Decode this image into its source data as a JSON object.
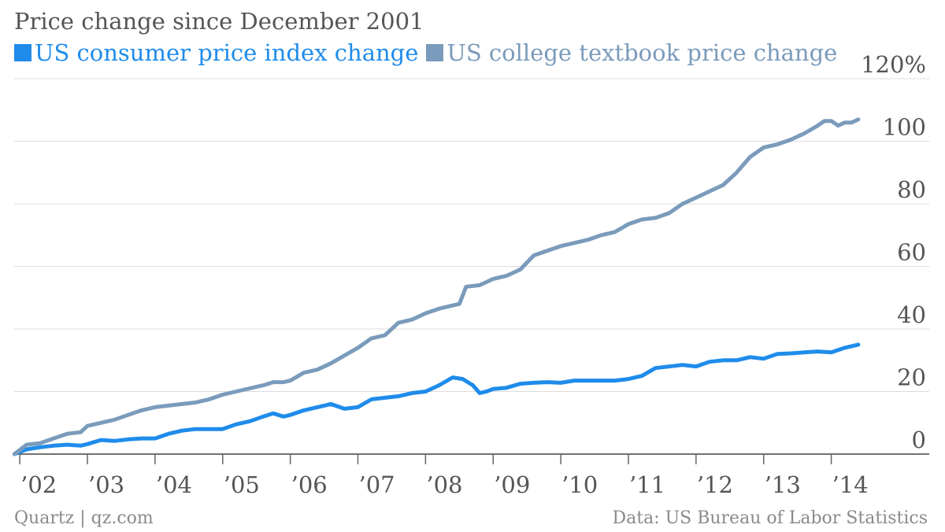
{
  "title": "Price change since December 2001",
  "legend": [
    {
      "label": "US consumer price index change",
      "color": "#1f8ceb"
    },
    {
      "label": "US college textbook price change",
      "color": "#7a9bbb"
    }
  ],
  "footer": {
    "source_left": "Quartz | qz.com",
    "source_right": "Data: US Bureau of Labor Statistics"
  },
  "chart_data": {
    "type": "line",
    "title": "Price change since December 2001",
    "xlabel": "",
    "ylabel": "",
    "xlim": [
      2001.917,
      2014.75
    ],
    "ylim": [
      0,
      120
    ],
    "grid": true,
    "legend_position": "top-left",
    "y_ticks": [
      "0",
      "20",
      "40",
      "60",
      "80",
      "100",
      "120%"
    ],
    "x_ticks": [
      "’02",
      "’03",
      "’04",
      "’05",
      "’06",
      "’07",
      "’08",
      "’09",
      "’10",
      "’11",
      "’12",
      "’13",
      "’14"
    ],
    "series": [
      {
        "name": "US consumer price index change",
        "color": "#1f8ceb",
        "x": [
          2001.92,
          2002.1,
          2002.3,
          2002.5,
          2002.7,
          2002.9,
          2003.0,
          2003.2,
          2003.4,
          2003.6,
          2003.8,
          2004.0,
          2004.2,
          2004.4,
          2004.6,
          2004.8,
          2005.0,
          2005.2,
          2005.4,
          2005.6,
          2005.75,
          2005.9,
          2006.0,
          2006.2,
          2006.4,
          2006.6,
          2006.8,
          2007.0,
          2007.2,
          2007.4,
          2007.6,
          2007.8,
          2008.0,
          2008.2,
          2008.4,
          2008.55,
          2008.7,
          2008.8,
          2008.9,
          2009.0,
          2009.2,
          2009.4,
          2009.6,
          2009.8,
          2010.0,
          2010.2,
          2010.4,
          2010.6,
          2010.8,
          2011.0,
          2011.2,
          2011.4,
          2011.6,
          2011.8,
          2012.0,
          2012.2,
          2012.4,
          2012.6,
          2012.8,
          2013.0,
          2013.2,
          2013.4,
          2013.6,
          2013.8,
          2014.0,
          2014.2,
          2014.4
        ],
        "values": [
          0,
          1.5,
          2.2,
          2.7,
          3.0,
          2.7,
          3.2,
          4.5,
          4.2,
          4.7,
          5.0,
          5.0,
          6.5,
          7.5,
          8.0,
          8.0,
          8.0,
          9.5,
          10.5,
          12.0,
          13.0,
          12.0,
          12.5,
          14.0,
          15.0,
          16.0,
          14.5,
          15.0,
          17.5,
          18.0,
          18.5,
          19.5,
          20.0,
          22.0,
          24.5,
          24.0,
          22.0,
          19.5,
          20.0,
          20.8,
          21.2,
          22.5,
          22.8,
          23.0,
          22.8,
          23.5,
          23.5,
          23.5,
          23.5,
          24.0,
          25.0,
          27.5,
          28.0,
          28.5,
          28.0,
          29.5,
          30.0,
          30.0,
          31.0,
          30.5,
          32.0,
          32.2,
          32.5,
          32.8,
          32.5,
          34.0,
          35.0
        ]
      },
      {
        "name": "US college textbook price change",
        "color": "#7a9bbb",
        "x": [
          2001.92,
          2002.1,
          2002.3,
          2002.5,
          2002.7,
          2002.9,
          2003.0,
          2003.2,
          2003.4,
          2003.6,
          2003.8,
          2004.0,
          2004.2,
          2004.4,
          2004.6,
          2004.8,
          2005.0,
          2005.2,
          2005.4,
          2005.6,
          2005.75,
          2005.9,
          2006.0,
          2006.2,
          2006.4,
          2006.6,
          2006.8,
          2007.0,
          2007.2,
          2007.4,
          2007.6,
          2007.8,
          2008.0,
          2008.2,
          2008.4,
          2008.5,
          2008.6,
          2008.8,
          2009.0,
          2009.2,
          2009.4,
          2009.6,
          2009.8,
          2010.0,
          2010.2,
          2010.4,
          2010.6,
          2010.8,
          2011.0,
          2011.2,
          2011.4,
          2011.6,
          2011.8,
          2012.0,
          2012.2,
          2012.4,
          2012.6,
          2012.8,
          2013.0,
          2013.2,
          2013.4,
          2013.6,
          2013.8,
          2013.9,
          2014.0,
          2014.1,
          2014.2,
          2014.3,
          2014.4
        ],
        "values": [
          0,
          3.0,
          3.5,
          5.0,
          6.5,
          7.0,
          9.0,
          10.0,
          11.0,
          12.5,
          14.0,
          15.0,
          15.5,
          16.0,
          16.5,
          17.5,
          19.0,
          20.0,
          21.0,
          22.0,
          23.0,
          23.0,
          23.5,
          26.0,
          27.0,
          29.0,
          31.5,
          34.0,
          37.0,
          38.0,
          42.0,
          43.0,
          45.0,
          46.5,
          47.5,
          48.0,
          53.5,
          54.0,
          56.0,
          57.0,
          59.0,
          63.5,
          65.0,
          66.5,
          67.5,
          68.5,
          70.0,
          71.0,
          73.5,
          75.0,
          75.5,
          77.0,
          80.0,
          82.0,
          84.0,
          86.0,
          90.0,
          95.0,
          98.0,
          99.0,
          100.5,
          102.5,
          105.0,
          106.5,
          106.5,
          105.0,
          106.0,
          106.0,
          107.0
        ]
      }
    ]
  }
}
